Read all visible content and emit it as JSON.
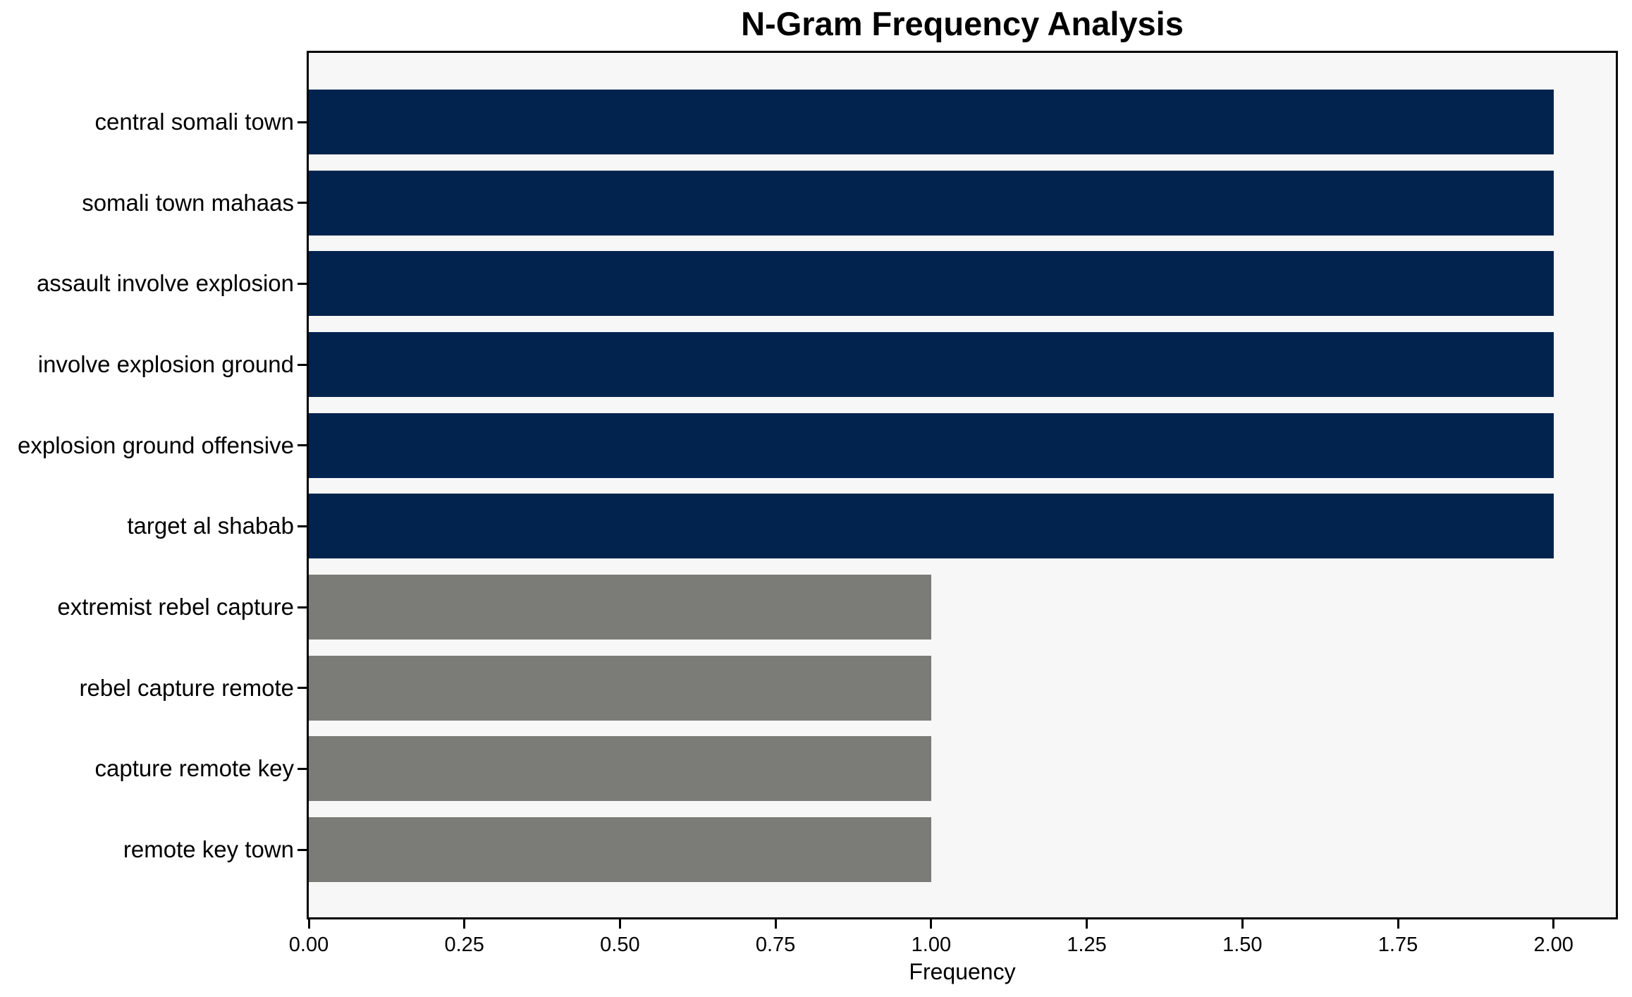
{
  "title": "N-Gram Frequency Analysis",
  "chart_data": {
    "type": "bar",
    "orientation": "horizontal",
    "title": "N-Gram Frequency Analysis",
    "xlabel": "Frequency",
    "ylabel": "",
    "categories": [
      "central somali town",
      "somali town mahaas",
      "assault involve explosion",
      "involve explosion ground",
      "explosion ground offensive",
      "target al shabab",
      "extremist rebel capture",
      "rebel capture remote",
      "capture remote key",
      "remote key town"
    ],
    "values": [
      2,
      2,
      2,
      2,
      2,
      2,
      1,
      1,
      1,
      1
    ],
    "bar_colors": [
      "#02234E",
      "#02234E",
      "#02234E",
      "#02234E",
      "#02234E",
      "#02234E",
      "#7B7B77",
      "#7B7B77",
      "#7B7B77",
      "#7B7B77"
    ],
    "x_ticks": [
      {
        "value": 0.0,
        "label": "0.00"
      },
      {
        "value": 0.25,
        "label": "0.25"
      },
      {
        "value": 0.5,
        "label": "0.50"
      },
      {
        "value": 0.75,
        "label": "0.75"
      },
      {
        "value": 1.0,
        "label": "1.00"
      },
      {
        "value": 1.25,
        "label": "1.25"
      },
      {
        "value": 1.5,
        "label": "1.50"
      },
      {
        "value": 1.75,
        "label": "1.75"
      },
      {
        "value": 2.0,
        "label": "2.00"
      }
    ],
    "xlim": [
      0,
      2.1
    ],
    "grid": false,
    "legend": null,
    "colors": {
      "high_frequency_bar": "#02234E",
      "low_frequency_bar": "#7B7B77",
      "plot_background": "#F7F7F7",
      "figure_background": "#FFFFFF",
      "spine": "#000000",
      "text": "#000000"
    }
  }
}
